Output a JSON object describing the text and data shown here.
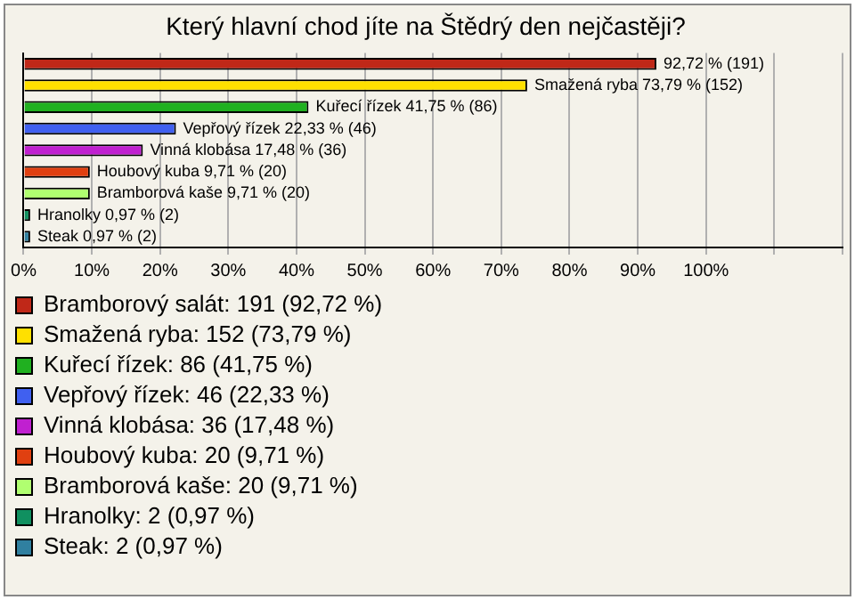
{
  "chart_data": {
    "type": "bar",
    "orientation": "horizontal",
    "title": "Který hlavní chod jíte na Štědrý den nejčastěji?",
    "categories": [
      null,
      null,
      null,
      null,
      null,
      null,
      null,
      null,
      null
    ],
    "series": [
      {
        "name": "Bramborový salát: 191 (92,72 %)",
        "color": "#c02818",
        "values": [
          92.72,
          null,
          null,
          null,
          null,
          null,
          null,
          null,
          null
        ],
        "value_labels": [
          "92,72 % (191)",
          null,
          null,
          null,
          null,
          null,
          null,
          null,
          null
        ]
      },
      {
        "name": "Smažená ryba: 152 (73,79 %)",
        "color": "#ffe000",
        "values": [
          null,
          73.79,
          null,
          null,
          null,
          null,
          null,
          null,
          null
        ],
        "value_labels": [
          null,
          "Smažená ryba 73,79 % (152)",
          null,
          null,
          null,
          null,
          null,
          null,
          null
        ]
      },
      {
        "name": "Kuřecí řízek: 86 (41,75 %)",
        "color": "#20b020",
        "values": [
          null,
          null,
          41.75,
          null,
          null,
          null,
          null,
          null,
          null
        ],
        "value_labels": [
          null,
          null,
          "Kuřecí řízek 41,75 % (86)",
          null,
          null,
          null,
          null,
          null,
          null
        ]
      },
      {
        "name": "Vepřový řízek: 46 (22,33 %)",
        "color": "#4060f0",
        "values": [
          null,
          null,
          null,
          22.33,
          null,
          null,
          null,
          null,
          null
        ],
        "value_labels": [
          null,
          null,
          null,
          "Vepřový řízek 22,33 % (46)",
          null,
          null,
          null,
          null,
          null
        ]
      },
      {
        "name": "Vinná klobása: 36 (17,48 %)",
        "color": "#c020d0",
        "values": [
          null,
          null,
          null,
          null,
          17.48,
          null,
          null,
          null,
          null
        ],
        "value_labels": [
          null,
          null,
          null,
          null,
          "Vinná klobása 17,48 % (36)",
          null,
          null,
          null,
          null
        ]
      },
      {
        "name": "Houbový kuba: 20 (9,71 %)",
        "color": "#e04010",
        "values": [
          null,
          null,
          null,
          null,
          null,
          9.71,
          null,
          null,
          null
        ],
        "value_labels": [
          null,
          null,
          null,
          null,
          null,
          "Houbový kuba 9,71 % (20)",
          null,
          null,
          null
        ]
      },
      {
        "name": "Bramborová kaše: 20 (9,71 %)",
        "color": "#b0ff70",
        "values": [
          null,
          null,
          null,
          null,
          null,
          null,
          9.71,
          null,
          null
        ],
        "value_labels": [
          null,
          null,
          null,
          null,
          null,
          null,
          "Bramborová kaše 9,71 % (20)",
          null,
          null
        ]
      },
      {
        "name": "Hranolky: 2 (0,97 %)",
        "color": "#109060",
        "values": [
          null,
          null,
          null,
          null,
          null,
          null,
          null,
          0.97,
          null
        ],
        "value_labels": [
          null,
          null,
          null,
          null,
          null,
          null,
          null,
          "Hranolky 0,97 % (2)",
          null
        ]
      },
      {
        "name": "Steak: 2 (0,97 %)",
        "color": "#3080a0",
        "values": [
          null,
          null,
          null,
          null,
          null,
          null,
          null,
          null,
          0.97
        ],
        "value_labels": [
          null,
          null,
          null,
          null,
          null,
          null,
          null,
          null,
          "Steak 0,97 % (2)"
        ]
      }
    ],
    "xlim": [
      0,
      120
    ],
    "xticks": [
      {
        "value": 0,
        "label": "0%"
      },
      {
        "value": 10,
        "label": "10%"
      },
      {
        "value": 20,
        "label": "20%"
      },
      {
        "value": 30,
        "label": "30%"
      },
      {
        "value": 40,
        "label": "40%"
      },
      {
        "value": 50,
        "label": "50%"
      },
      {
        "value": 60,
        "label": "60%"
      },
      {
        "value": 70,
        "label": "70%"
      },
      {
        "value": 80,
        "label": "80%"
      },
      {
        "value": 90,
        "label": "90%"
      },
      {
        "value": 100,
        "label": "100%"
      },
      {
        "value": 110,
        "label": null
      },
      {
        "value": 120,
        "label": null
      }
    ],
    "grid": "x",
    "tick_labels": "x",
    "legend": "bottom"
  }
}
